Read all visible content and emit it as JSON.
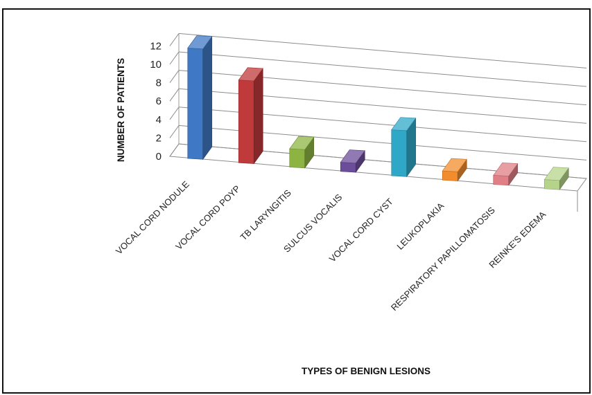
{
  "chart_data": {
    "type": "bar",
    "title": "",
    "xlabel": "TYPES OF BENIGN LESIONS",
    "ylabel": "NUMBER OF PATIENTS",
    "categories": [
      "VOCAL CORD NODULE",
      "VOCAL CORD POYP",
      "TB LARYNGITIS",
      "SULCUS VOCALIS",
      "VOCAL CORD CYST",
      "LEUKOPLAKIA",
      "RESPIRATORY PAPILLOMATOSIS",
      "REINKE'S EDEMA"
    ],
    "values": [
      12,
      9,
      2,
      1,
      5,
      1,
      1,
      1
    ],
    "ylim": [
      0,
      12
    ],
    "yticks": [
      0,
      2,
      4,
      6,
      8,
      10,
      12
    ],
    "grid": true,
    "legend": "none",
    "style": "3d-column",
    "colors": [
      "#3f78c4",
      "#c0393b",
      "#8db443",
      "#6c4d9a",
      "#2fa8c8",
      "#f28c2c",
      "#e07f86",
      "#b5d48a"
    ]
  }
}
